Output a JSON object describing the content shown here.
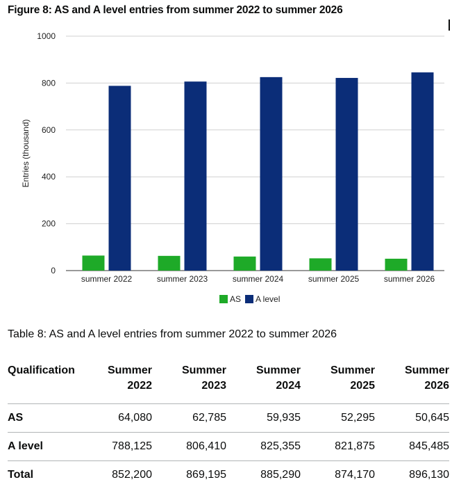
{
  "figure_title": "Figure 8: AS and A level entries from summer 2022 to summer 2026",
  "table_caption": "Table 8: AS and A level entries from summer 2022 to summer 2026",
  "colors": {
    "as": "#1eaa28",
    "a_level": "#0b2d78",
    "grid": "#d0d0d0",
    "axis": "#333333"
  },
  "chart_data": {
    "type": "bar",
    "title": "",
    "xlabel": "",
    "ylabel": "Entries (thousand)",
    "ylim": [
      0,
      1000
    ],
    "yticks": [
      0,
      200,
      400,
      600,
      800,
      1000
    ],
    "categories": [
      "summer 2022",
      "summer 2023",
      "summer 2024",
      "summer 2025",
      "summer 2026"
    ],
    "series": [
      {
        "name": "AS",
        "values": [
          64.08,
          62.785,
          59.935,
          52.295,
          50.645
        ]
      },
      {
        "name": "A level",
        "values": [
          788.125,
          806.41,
          825.355,
          821.875,
          845.485
        ]
      }
    ],
    "grid": true,
    "legend": "bottom"
  },
  "table": {
    "headers": [
      [
        "Qualification"
      ],
      [
        "Summer",
        "2022"
      ],
      [
        "Summer",
        "2023"
      ],
      [
        "Summer",
        "2024"
      ],
      [
        "Summer",
        "2025"
      ],
      [
        "Summer",
        "2026"
      ]
    ],
    "rows": [
      {
        "label": "AS",
        "values": [
          "64,080",
          "62,785",
          "59,935",
          "52,295",
          "50,645"
        ]
      },
      {
        "label": "A level",
        "values": [
          "788,125",
          "806,410",
          "825,355",
          "821,875",
          "845,485"
        ]
      },
      {
        "label": "Total",
        "values": [
          "852,200",
          "869,195",
          "885,290",
          "874,170",
          "896,130"
        ]
      }
    ]
  }
}
